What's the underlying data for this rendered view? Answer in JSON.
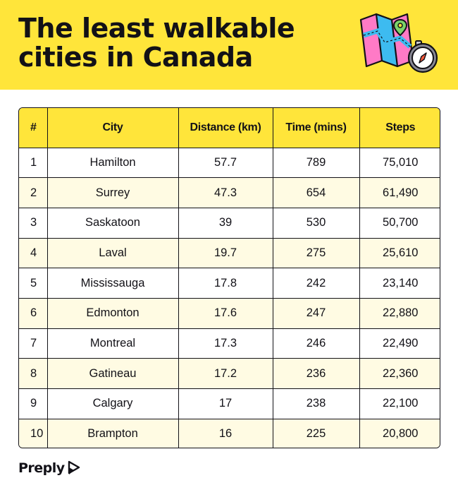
{
  "header": {
    "title_line1": "The least walkable",
    "title_line2": "cities in Canada",
    "background": "#ffe53a"
  },
  "illustration": {
    "icons": [
      "folded-map-icon",
      "map-pin-icon",
      "compass-icon"
    ]
  },
  "table": {
    "headers": [
      "#",
      "City",
      "Distance (km)",
      "Time (mins)",
      "Steps"
    ],
    "rows": [
      [
        "1",
        "Hamilton",
        "57.7",
        "789",
        "75,010"
      ],
      [
        "2",
        "Surrey",
        "47.3",
        "654",
        "61,490"
      ],
      [
        "3",
        "Saskatoon",
        "39",
        "530",
        "50,700"
      ],
      [
        "4",
        "Laval",
        "19.7",
        "275",
        "25,610"
      ],
      [
        "5",
        "Mississauga",
        "17.8",
        "242",
        "23,140"
      ],
      [
        "6",
        "Edmonton",
        "17.6",
        "247",
        "22,880"
      ],
      [
        "7",
        "Montreal",
        "17.3",
        "246",
        "22,490"
      ],
      [
        "8",
        "Gatineau",
        "17.2",
        "236",
        "22,360"
      ],
      [
        "9",
        "Calgary",
        "17",
        "238",
        "22,100"
      ],
      [
        "10",
        "Brampton",
        "16",
        "225",
        "20,800"
      ]
    ],
    "header_color": "#ffe53a",
    "alt_row_color": "#fffbe3"
  },
  "footer": {
    "logo_text": "Preply"
  }
}
